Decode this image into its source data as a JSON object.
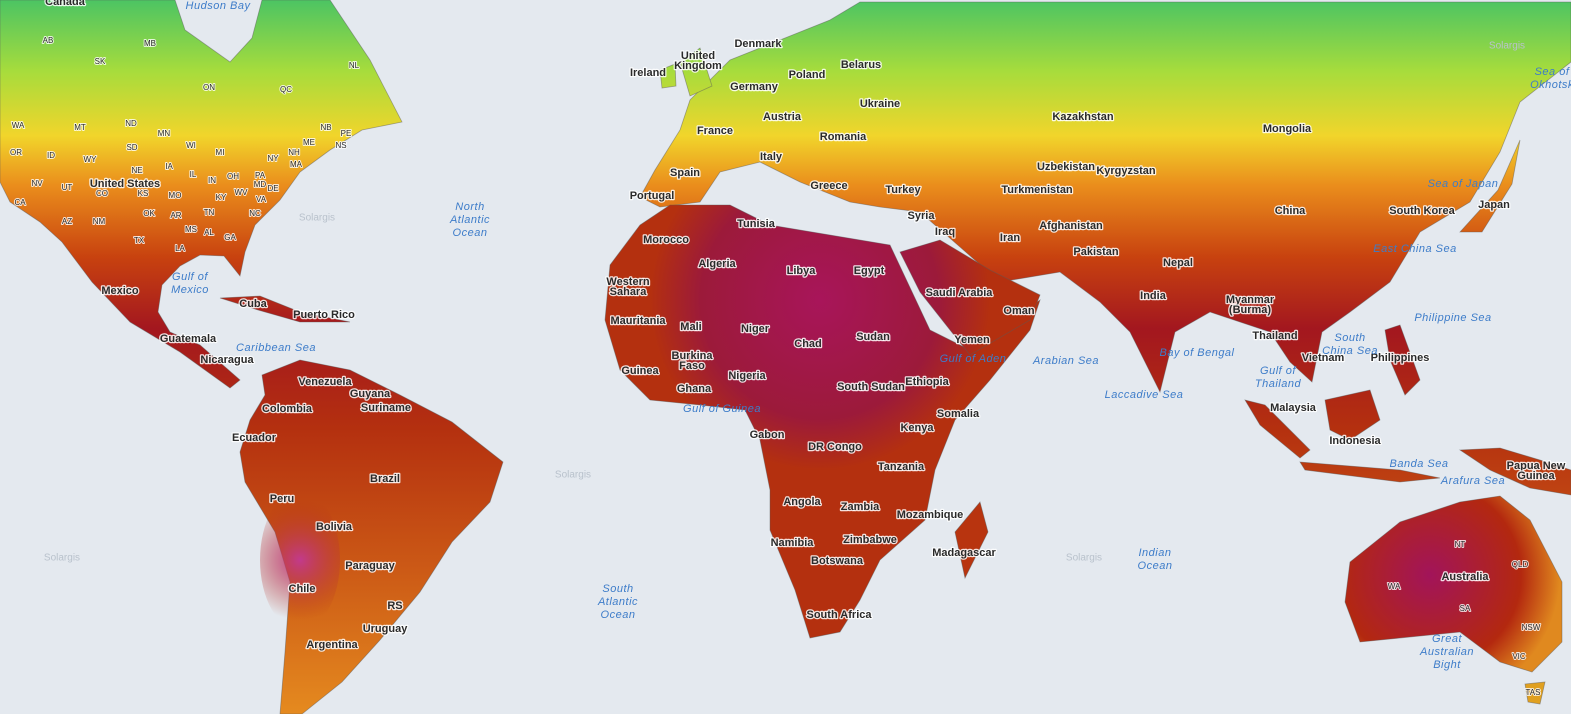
{
  "map": {
    "countries": [
      "Canada",
      [
        "United",
        "Kingdom"
      ],
      "Ireland",
      "Denmark",
      "Poland",
      "Belarus",
      "Germany",
      "Ukraine",
      "Austria",
      "France",
      "Romania",
      "Italy",
      "Greece",
      "Spain",
      "Portugal",
      "Turkey",
      "Syria",
      "Iraq",
      "Iran",
      "Kazakhstan",
      "Uzbekistan",
      "Kyrgyzstan",
      "Turkmenistan",
      "Afghanistan",
      "Pakistan",
      "Mongolia",
      "China",
      "South Korea",
      "Japan",
      "Nepal",
      "India",
      [
        "Myanmar",
        "(Burma)"
      ],
      "Thailand",
      "Vietnam",
      "Philippines",
      "Malaysia",
      "Indonesia",
      [
        "Papua New",
        "Guinea"
      ],
      "Australia",
      "Morocco",
      "Algeria",
      "Libya",
      "Egypt",
      "Tunisia",
      [
        "Western",
        "Sahara"
      ],
      "Saudi Arabia",
      "Oman",
      "Yemen",
      "Mauritania",
      "Mali",
      "Niger",
      "Chad",
      "Sudan",
      [
        "Burkina",
        "Faso"
      ],
      "Guinea",
      "Ghana",
      "Nigeria",
      "South Sudan",
      "Ethiopia",
      "Somalia",
      "Kenya",
      "Gabon",
      "DR Congo",
      "Tanzania",
      "Angola",
      "Zambia",
      "Mozambique",
      "Zimbabwe",
      "Namibia",
      "Botswana",
      "Madagascar",
      "South Africa",
      "United States",
      "Mexico",
      "Cuba",
      "Puerto Rico",
      "Guatemala",
      "Nicaragua",
      "Venezuela",
      "Guyana",
      "Suriname",
      "Colombia",
      "Ecuador",
      "Brazil",
      "Peru",
      "Bolivia",
      "Paraguay",
      "Chile",
      "RS",
      "Uruguay",
      "Argentina"
    ],
    "regions": [
      "AB",
      "MB",
      "SK",
      "ON",
      "QC",
      "NL",
      "NB",
      "PE",
      "NS",
      "ME",
      "NH",
      "MA",
      "NY",
      "WA",
      "MT",
      "ND",
      "MN",
      "SD",
      "WI",
      "MI",
      "OR",
      "ID",
      "WY",
      "NE",
      "IA",
      "IL",
      "IN",
      "OH",
      "PA",
      "MD",
      "DE",
      "NV",
      "UT",
      "CO",
      "KS",
      "MO",
      "KY",
      "WV",
      "VA",
      "CA",
      "AZ",
      "NM",
      "OK",
      "AR",
      "TN",
      "NC",
      "TX",
      "MS",
      "AL",
      "GA",
      "LA",
      "NT",
      "QLD",
      "WA",
      "SA",
      "NSW",
      "VIC",
      "TAS"
    ],
    "water": [
      "Hudson Bay",
      [
        "North",
        "Atlantic",
        "Ocean"
      ],
      [
        "Gulf of",
        "Mexico"
      ],
      "Caribbean Sea",
      [
        "South",
        "Atlantic",
        "Ocean"
      ],
      "Gulf of Guinea",
      "Gulf of Aden",
      "Arabian Sea",
      "Bay of Bengal",
      "Laccadive Sea",
      [
        "Indian",
        "Ocean"
      ],
      "Sea of Japan",
      "East China Sea",
      [
        "Sea of",
        "Okhotsk"
      ],
      "Philippine Sea",
      [
        "South",
        "China Sea"
      ],
      [
        "Gulf of",
        "Thailand"
      ],
      "Banda Sea",
      "Arafura Sea",
      [
        "Great",
        "Australian",
        "Bight"
      ]
    ],
    "watermarks": [
      "Solargis",
      "Solargis",
      "Solargis",
      "Solargis",
      "Solargis"
    ]
  }
}
